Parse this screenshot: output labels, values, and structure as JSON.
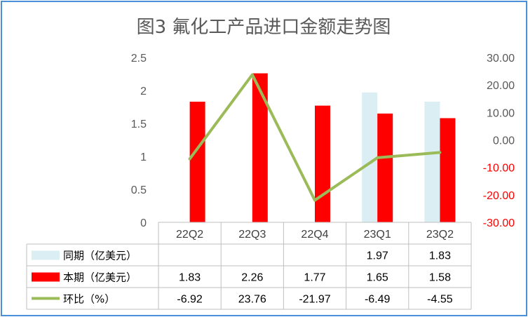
{
  "chart_data": {
    "type": "bar",
    "title": "图3  氟化工产品进口金额走势图",
    "categories": [
      "22Q2",
      "22Q3",
      "22Q4",
      "23Q1",
      "23Q2"
    ],
    "series": [
      {
        "name": "同期（亿美元）",
        "kind": "bar",
        "axis": "left",
        "color": "#daeef3",
        "values": [
          null,
          null,
          null,
          1.97,
          1.83
        ],
        "labels": [
          "",
          "",
          "",
          "1.97",
          "1.83"
        ]
      },
      {
        "name": "本期（亿美元）",
        "kind": "bar",
        "axis": "left",
        "color": "#ff0000",
        "values": [
          1.83,
          2.26,
          1.77,
          1.65,
          1.58
        ],
        "labels": [
          "1.83",
          "2.26",
          "1.77",
          "1.65",
          "1.58"
        ]
      },
      {
        "name": "环比（%）",
        "kind": "line",
        "axis": "right",
        "color": "#9bbb59",
        "values": [
          -6.92,
          23.76,
          -21.97,
          -6.49,
          -4.55
        ],
        "labels": [
          "-6.92",
          "23.76",
          "-21.97",
          "-6.49",
          "-4.55"
        ]
      }
    ],
    "ylim": [
      0,
      2.5
    ],
    "y_ticks": [
      "0",
      "0.5",
      "1",
      "1.5",
      "2",
      "2.5"
    ],
    "y2lim": [
      -30,
      30
    ],
    "y2_ticks": [
      "-30.00",
      "-20.00",
      "-10.00",
      "0.00",
      "10.00",
      "20.00",
      "30.00"
    ],
    "y2_tick_colors": {
      "negative": "#ff0000",
      "positive": "#595959"
    },
    "data_table": true,
    "legend": "data-table"
  }
}
